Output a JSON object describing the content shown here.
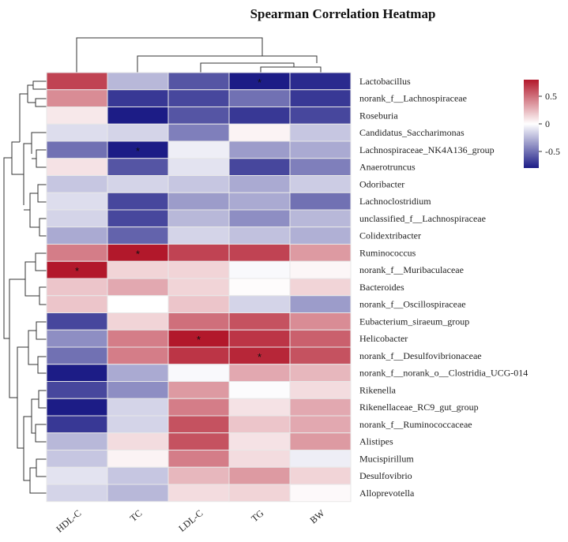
{
  "chart_data": {
    "type": "heatmap",
    "title": "Spearman Correlation Heatmap",
    "columns": [
      "HDL-C",
      "TC",
      "LDL-C",
      "TG",
      "BW"
    ],
    "rows": [
      "Lactobacillus",
      "norank_f__Lachnospiraceae",
      "Roseburia",
      "Candidatus_Saccharimonas",
      "Lachnospiraceae_NK4A136_group",
      "Anaerotruncus",
      "Odoribacter",
      "Lachnoclostridium",
      "unclassified_f__Lachnospiraceae",
      "Colidextribacter",
      "Ruminococcus",
      "norank_f__Muribaculaceae",
      "Bacteroides",
      "norank_f__Oscillospiraceae",
      "Eubacterium_siraeum_group",
      "Helicobacter",
      "norank_f__Desulfovibrionaceae",
      "norank_f__norank_o__Clostridia_UCG-014",
      "Rikenella",
      "Rikenellaceae_RC9_gut_group",
      "norank_f__Ruminococcaceae",
      "Alistipes",
      "Mucispirillum",
      "Desulfovibrio",
      "Alloprevotella"
    ],
    "values": [
      [
        0.65,
        -0.25,
        -0.6,
        -0.85,
        -0.75
      ],
      [
        0.4,
        -0.7,
        -0.65,
        -0.5,
        -0.7
      ],
      [
        0.08,
        -0.8,
        -0.6,
        -0.7,
        -0.65
      ],
      [
        -0.12,
        -0.15,
        -0.45,
        0.04,
        -0.2
      ],
      [
        -0.5,
        -0.95,
        -0.06,
        -0.35,
        -0.3
      ],
      [
        0.1,
        -0.6,
        -0.1,
        -0.65,
        -0.45
      ],
      [
        -0.2,
        -0.15,
        -0.2,
        -0.3,
        -0.18
      ],
      [
        -0.12,
        -0.65,
        -0.35,
        -0.3,
        -0.5
      ],
      [
        -0.15,
        -0.65,
        -0.25,
        -0.4,
        -0.25
      ],
      [
        -0.3,
        -0.55,
        -0.15,
        -0.22,
        -0.28
      ],
      [
        0.45,
        0.8,
        0.65,
        0.65,
        0.35
      ],
      [
        0.8,
        0.15,
        0.15,
        -0.02,
        0.03
      ],
      [
        0.2,
        0.3,
        0.15,
        0.01,
        0.15
      ],
      [
        0.2,
        0.0,
        0.2,
        -0.15,
        -0.35
      ],
      [
        -0.65,
        0.15,
        0.5,
        0.6,
        0.4
      ],
      [
        -0.4,
        0.45,
        0.85,
        0.7,
        0.55
      ],
      [
        -0.5,
        0.45,
        0.7,
        0.75,
        0.6
      ],
      [
        -0.8,
        -0.3,
        -0.02,
        0.3,
        0.25
      ],
      [
        -0.65,
        -0.4,
        0.35,
        -0.01,
        0.12
      ],
      [
        -0.85,
        -0.15,
        0.45,
        0.1,
        0.3
      ],
      [
        -0.7,
        -0.15,
        0.6,
        0.2,
        0.3
      ],
      [
        -0.25,
        0.12,
        0.6,
        0.1,
        0.35
      ],
      [
        -0.2,
        0.04,
        0.45,
        0.12,
        -0.06
      ],
      [
        -0.1,
        -0.2,
        0.25,
        0.35,
        0.15
      ],
      [
        -0.15,
        -0.25,
        0.12,
        0.15,
        0.02
      ]
    ],
    "significance": [
      [
        "",
        "",
        "",
        "*",
        ""
      ],
      [
        "",
        "",
        "",
        "",
        ""
      ],
      [
        "",
        "",
        "",
        "",
        ""
      ],
      [
        "",
        "",
        "",
        "",
        ""
      ],
      [
        "",
        "*",
        "",
        "",
        ""
      ],
      [
        "",
        "",
        "",
        "",
        ""
      ],
      [
        "",
        "",
        "",
        "",
        ""
      ],
      [
        "",
        "",
        "",
        "",
        ""
      ],
      [
        "",
        "",
        "",
        "",
        ""
      ],
      [
        "",
        "",
        "",
        "",
        ""
      ],
      [
        "",
        "*",
        "",
        "",
        ""
      ],
      [
        "*",
        "",
        "",
        "",
        ""
      ],
      [
        "",
        "",
        "",
        "",
        ""
      ],
      [
        "",
        "",
        "",
        "",
        ""
      ],
      [
        "",
        "",
        "",
        "",
        ""
      ],
      [
        "",
        "",
        "*",
        "",
        ""
      ],
      [
        "",
        "",
        "",
        "*",
        ""
      ],
      [
        "",
        "",
        "",
        "",
        ""
      ],
      [
        "",
        "",
        "",
        "",
        ""
      ],
      [
        "",
        "",
        "",
        "",
        ""
      ],
      [
        "",
        "",
        "",
        "",
        ""
      ],
      [
        "",
        "",
        "",
        "",
        ""
      ],
      [
        "",
        "",
        "",
        "",
        ""
      ],
      [
        "",
        "",
        "",
        "",
        ""
      ],
      [
        "",
        "",
        "",
        "",
        ""
      ]
    ],
    "color_scale": {
      "min": -0.8,
      "mid": 0,
      "max": 0.8,
      "low_color": "#1c1c86",
      "mid_color": "#ffffff",
      "high_color": "#b2182b"
    },
    "legend": {
      "ticks": [
        "0.5",
        "0",
        "-0.5"
      ],
      "tick_values": [
        0.5,
        0,
        -0.5
      ],
      "placement": "right"
    },
    "row_dendrogram": "left",
    "column_dendrogram": "top"
  }
}
